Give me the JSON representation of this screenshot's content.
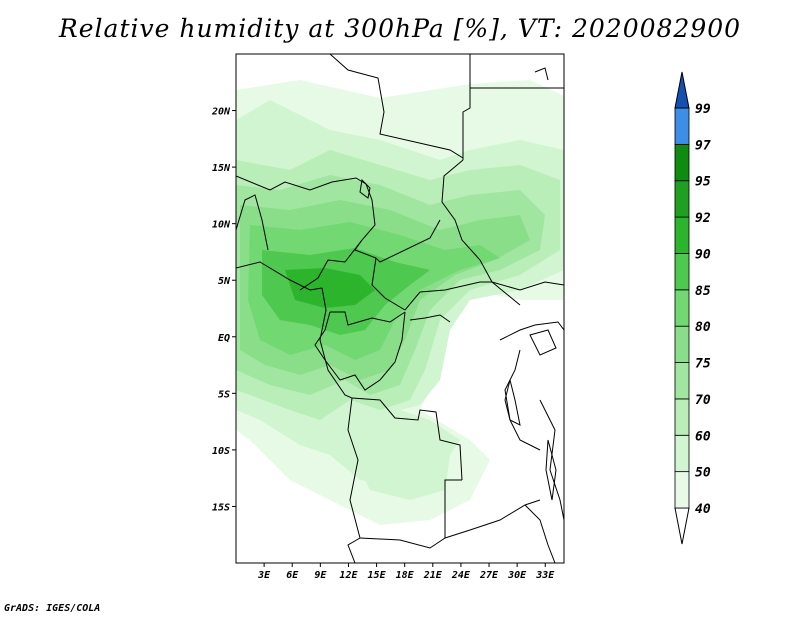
{
  "title": "Relative humidity at 300hPa [%], VT: 2020082900",
  "credit": "GrADS: IGES/COLA",
  "colors": {
    "c40": "#e6fae6",
    "c50": "#d0f5d0",
    "c60": "#b9eeb9",
    "c70": "#a0e6a0",
    "c75": "#8ade8a",
    "c80": "#72d872",
    "c85": "#4ec84e",
    "c90": "#2db42d",
    "c92": "#20a020",
    "c95": "#0f8c0f",
    "c97": "#3d8ee6",
    "c99": "#1e62d0",
    "top": "#1450b4",
    "coast": "#000000"
  },
  "chart_data": {
    "type": "map",
    "variable": "Relative humidity",
    "level": "300hPa",
    "units": "%",
    "valid_time": "2020082900",
    "lon_range": [
      0,
      35
    ],
    "lat_range": [
      -20,
      25
    ],
    "x_ticks": [
      "3E",
      "6E",
      "9E",
      "12E",
      "15E",
      "18E",
      "21E",
      "24E",
      "27E",
      "30E",
      "33E"
    ],
    "x_tick_values": [
      3,
      6,
      9,
      12,
      15,
      18,
      21,
      24,
      27,
      30,
      33
    ],
    "y_ticks": [
      "20N",
      "15N",
      "10N",
      "5N",
      "EQ",
      "5S",
      "10S",
      "15S"
    ],
    "y_tick_values": [
      20,
      15,
      10,
      5,
      0,
      -5,
      -10,
      -15
    ],
    "colorbar": {
      "labels": [
        "40",
        "50",
        "60",
        "70",
        "75",
        "80",
        "85",
        "90",
        "92",
        "95",
        "97",
        "99"
      ],
      "bins": [
        {
          "from": 40,
          "to": 50,
          "color": "#e6fae6"
        },
        {
          "from": 50,
          "to": 60,
          "color": "#d0f5d0"
        },
        {
          "from": 60,
          "to": 70,
          "color": "#b9eeb9"
        },
        {
          "from": 70,
          "to": 75,
          "color": "#a0e6a0"
        },
        {
          "from": 75,
          "to": 80,
          "color": "#8ade8a"
        },
        {
          "from": 80,
          "to": 85,
          "color": "#72d872"
        },
        {
          "from": 85,
          "to": 90,
          "color": "#4ec84e"
        },
        {
          "from": 90,
          "to": 92,
          "color": "#2db42d"
        },
        {
          "from": 92,
          "to": 95,
          "color": "#20a020"
        },
        {
          "from": 95,
          "to": 97,
          "color": "#0f8c0f"
        },
        {
          "from": 97,
          "to": 99,
          "color": "#3d8ee6"
        },
        {
          "from": 99,
          "to": 100,
          "color": "#1e62d0"
        }
      ]
    }
  }
}
